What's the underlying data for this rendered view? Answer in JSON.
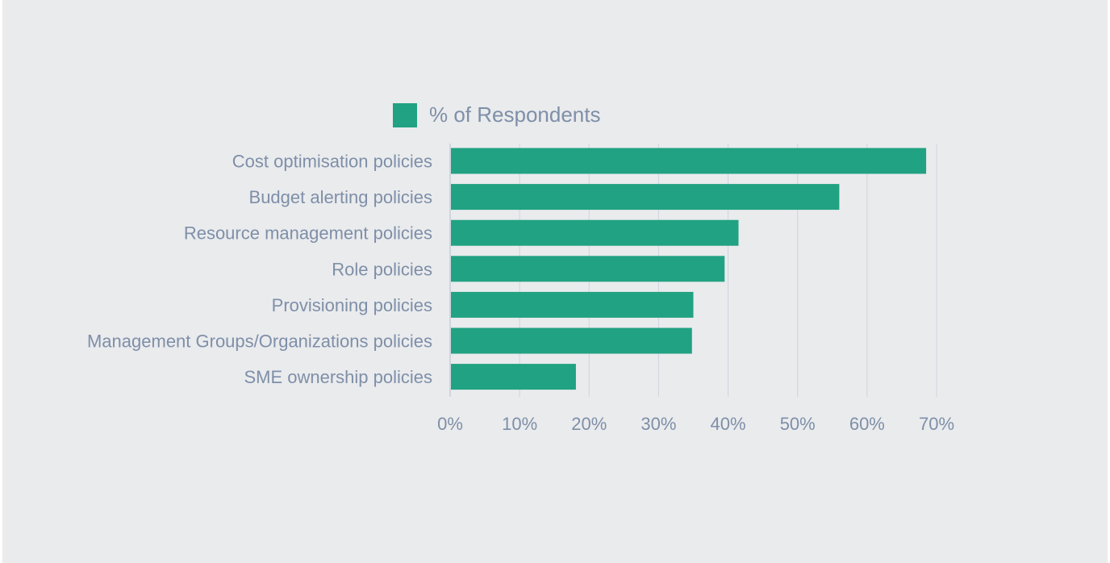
{
  "chart_data": {
    "type": "bar",
    "orientation": "horizontal",
    "categories": [
      "Cost optimisation policies",
      "Budget alerting policies",
      "Resource management policies",
      "Role policies",
      "Provisioning policies",
      "Management Groups/Organizations policies",
      "SME ownership policies"
    ],
    "series": [
      {
        "name": "% of Respondents",
        "values": [
          68.5,
          56,
          41.5,
          39.5,
          35,
          34.8,
          18.1
        ],
        "color": "#21a282"
      }
    ],
    "x_ticks": [
      "0%",
      "10%",
      "20%",
      "30%",
      "40%",
      "50%",
      "60%",
      "70%"
    ],
    "xlim": [
      0,
      70
    ],
    "grid": true,
    "legend": "top-left",
    "colors": {
      "background": "#eaebed",
      "grid": "#cfd5de",
      "text": "#7e8fa8",
      "bar": "#21a282"
    }
  }
}
